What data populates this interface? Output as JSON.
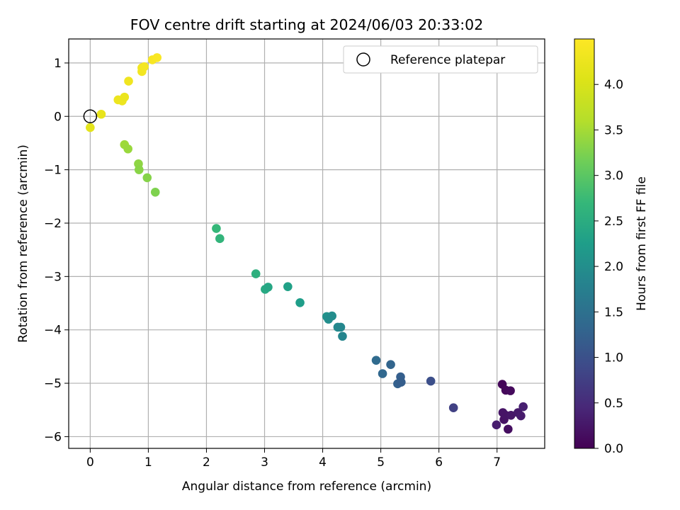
{
  "chart_data": {
    "type": "scatter",
    "title": "FOV centre drift starting at 2024/06/03 20:33:02",
    "xlabel": "Angular distance from reference (arcmin)",
    "ylabel": "Rotation from reference (arcmin)",
    "xlim": [
      -0.37,
      7.82
    ],
    "ylim": [
      -6.22,
      1.45
    ],
    "xticks": [
      0,
      1,
      2,
      3,
      4,
      5,
      6,
      7
    ],
    "yticks": [
      -6,
      -5,
      -4,
      -3,
      -2,
      -1,
      0,
      1
    ],
    "ytick_labels": [
      "−6",
      "−5",
      "−4",
      "−3",
      "−2",
      "−1",
      "0",
      "1"
    ],
    "grid": true,
    "colormap": "viridis",
    "colorbar": {
      "label": "Hours from first FF file",
      "range": [
        0.0,
        4.5
      ],
      "ticks": [
        0.0,
        0.5,
        1.0,
        1.5,
        2.0,
        2.5,
        3.0,
        3.5,
        4.0
      ],
      "tick_labels": [
        "0.0",
        "0.5",
        "1.0",
        "1.5",
        "2.0",
        "2.5",
        "3.0",
        "3.5",
        "4.0"
      ]
    },
    "legend": {
      "placement": "top-right",
      "entries": [
        {
          "label": "Reference platepar",
          "marker": "open-circle",
          "x": 0,
          "y": 0
        }
      ]
    },
    "points": [
      {
        "x": 0.0,
        "y": -0.21,
        "h": 4.15
      },
      {
        "x": 0.19,
        "y": 0.04,
        "h": 4.2
      },
      {
        "x": 0.48,
        "y": 0.31,
        "h": 4.28
      },
      {
        "x": 0.55,
        "y": 0.29,
        "h": 4.28
      },
      {
        "x": 0.59,
        "y": 0.36,
        "h": 4.25
      },
      {
        "x": 0.66,
        "y": 0.66,
        "h": 4.32
      },
      {
        "x": 0.89,
        "y": 0.91,
        "h": 4.35
      },
      {
        "x": 0.89,
        "y": 0.84,
        "h": 4.35
      },
      {
        "x": 0.93,
        "y": 0.93,
        "h": 4.38
      },
      {
        "x": 1.07,
        "y": 1.06,
        "h": 4.42
      },
      {
        "x": 1.15,
        "y": 1.1,
        "h": 4.45
      },
      {
        "x": 0.59,
        "y": -0.53,
        "h": 3.45
      },
      {
        "x": 0.65,
        "y": -0.61,
        "h": 3.42
      },
      {
        "x": 0.83,
        "y": -0.89,
        "h": 3.35
      },
      {
        "x": 0.84,
        "y": -1.0,
        "h": 3.32
      },
      {
        "x": 0.98,
        "y": -1.15,
        "h": 3.3
      },
      {
        "x": 1.12,
        "y": -1.42,
        "h": 3.25
      },
      {
        "x": 2.17,
        "y": -2.1,
        "h": 2.7
      },
      {
        "x": 2.23,
        "y": -2.29,
        "h": 2.65
      },
      {
        "x": 2.85,
        "y": -2.95,
        "h": 2.55
      },
      {
        "x": 3.01,
        "y": -3.24,
        "h": 2.45
      },
      {
        "x": 3.06,
        "y": -3.2,
        "h": 2.4
      },
      {
        "x": 3.4,
        "y": -3.19,
        "h": 2.3
      },
      {
        "x": 3.61,
        "y": -3.49,
        "h": 2.25
      },
      {
        "x": 4.07,
        "y": -3.75,
        "h": 2.05
      },
      {
        "x": 4.1,
        "y": -3.8,
        "h": 2.0
      },
      {
        "x": 4.16,
        "y": -3.74,
        "h": 1.98
      },
      {
        "x": 4.26,
        "y": -3.95,
        "h": 1.92
      },
      {
        "x": 4.31,
        "y": -3.95,
        "h": 1.88
      },
      {
        "x": 4.34,
        "y": -4.12,
        "h": 1.85
      },
      {
        "x": 4.92,
        "y": -4.57,
        "h": 1.4
      },
      {
        "x": 5.03,
        "y": -4.82,
        "h": 1.35
      },
      {
        "x": 5.17,
        "y": -4.65,
        "h": 1.3
      },
      {
        "x": 5.29,
        "y": -5.01,
        "h": 1.25
      },
      {
        "x": 5.34,
        "y": -4.88,
        "h": 1.22
      },
      {
        "x": 5.35,
        "y": -4.98,
        "h": 1.2
      },
      {
        "x": 5.86,
        "y": -4.96,
        "h": 0.98
      },
      {
        "x": 6.25,
        "y": -5.46,
        "h": 0.78
      },
      {
        "x": 7.09,
        "y": -5.02,
        "h": 0.05
      },
      {
        "x": 7.15,
        "y": -5.13,
        "h": 0.08
      },
      {
        "x": 7.23,
        "y": -5.14,
        "h": 0.1
      },
      {
        "x": 7.1,
        "y": -5.55,
        "h": 0.22
      },
      {
        "x": 7.12,
        "y": -5.68,
        "h": 0.2
      },
      {
        "x": 7.15,
        "y": -5.6,
        "h": 0.22
      },
      {
        "x": 7.19,
        "y": -5.86,
        "h": 0.15
      },
      {
        "x": 7.24,
        "y": -5.6,
        "h": 0.25
      },
      {
        "x": 7.36,
        "y": -5.55,
        "h": 0.28
      },
      {
        "x": 7.41,
        "y": -5.61,
        "h": 0.3
      },
      {
        "x": 7.45,
        "y": -5.44,
        "h": 0.35
      },
      {
        "x": 6.99,
        "y": -5.78,
        "h": 0.32
      }
    ]
  }
}
